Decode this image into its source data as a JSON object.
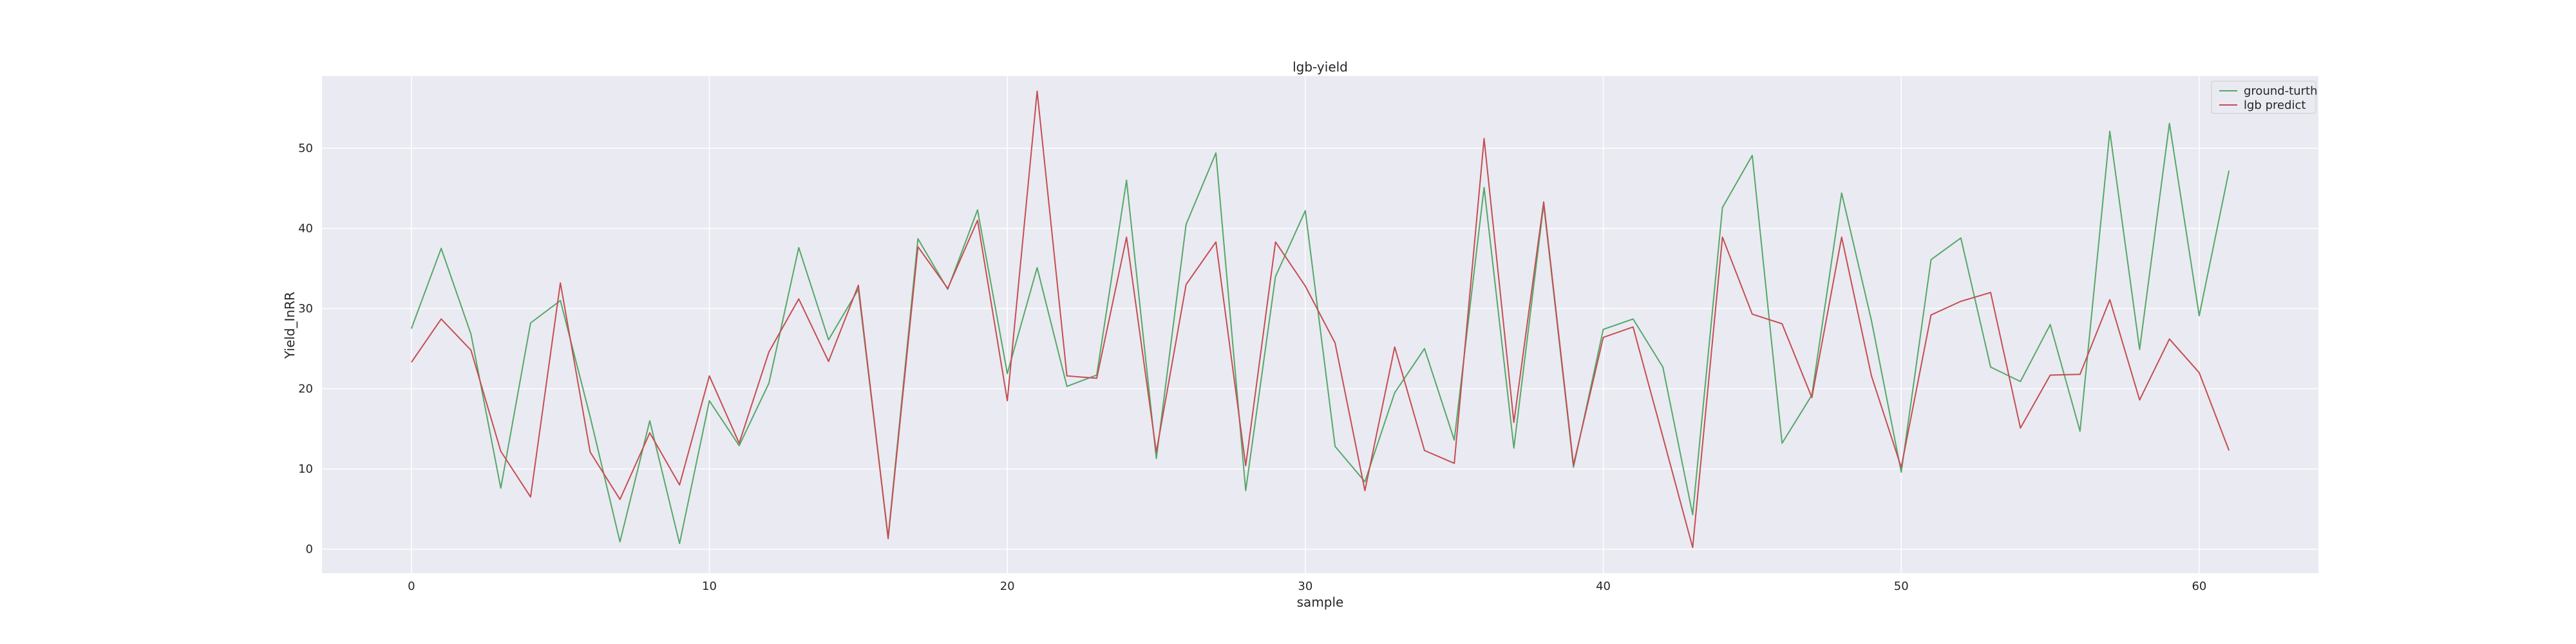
{
  "chart_data": {
    "type": "line",
    "title": "lgb-yield",
    "xlabel": "sample",
    "ylabel": "Yield_InRR",
    "xlim": [
      -3,
      64
    ],
    "ylim": [
      -3,
      59
    ],
    "xticks": [
      0,
      10,
      20,
      30,
      40,
      50,
      60
    ],
    "yticks": [
      0,
      10,
      20,
      30,
      40,
      50
    ],
    "grid": true,
    "legend_position": "top-right",
    "series": [
      {
        "name": "ground-turth",
        "color": "#55a868",
        "values": [
          27.5,
          37.5,
          26.8,
          7.6,
          28.2,
          31.0,
          16.5,
          0.9,
          16.0,
          0.7,
          18.5,
          12.9,
          20.7,
          37.6,
          26.1,
          32.4,
          1.5,
          38.7,
          32.4,
          42.3,
          21.9,
          35.1,
          20.3,
          21.7,
          46.0,
          11.3,
          40.5,
          49.4,
          7.3,
          34.0,
          42.2,
          12.8,
          8.4,
          19.5,
          25.0,
          13.6,
          45.1,
          12.6,
          43.0,
          10.2,
          27.4,
          28.7,
          22.7,
          4.3,
          42.6,
          49.1,
          13.2,
          19.2,
          44.4,
          28.5,
          9.6,
          36.1,
          38.8,
          22.7,
          20.9,
          28.0,
          14.7,
          52.1,
          24.9,
          53.1,
          29.1,
          47.2
        ]
      },
      {
        "name": "lgb predict",
        "color": "#c44e52",
        "values": [
          23.3,
          28.7,
          24.8,
          12.2,
          6.5,
          33.2,
          12.1,
          6.2,
          14.5,
          8.0,
          21.6,
          13.2,
          24.6,
          31.2,
          23.4,
          32.9,
          1.3,
          37.7,
          32.5,
          41.0,
          18.5,
          57.1,
          21.6,
          21.3,
          38.9,
          12.1,
          33.0,
          38.3,
          10.4,
          38.3,
          32.8,
          25.7,
          7.3,
          25.2,
          12.3,
          10.7,
          51.2,
          15.8,
          43.3,
          10.5,
          26.4,
          27.7,
          14.0,
          0.2,
          38.9,
          29.3,
          28.1,
          18.9,
          38.9,
          21.6,
          10.2,
          29.2,
          30.9,
          32.0,
          15.1,
          21.7,
          21.8,
          31.1,
          18.6,
          26.2,
          22.0,
          12.3
        ]
      }
    ]
  }
}
